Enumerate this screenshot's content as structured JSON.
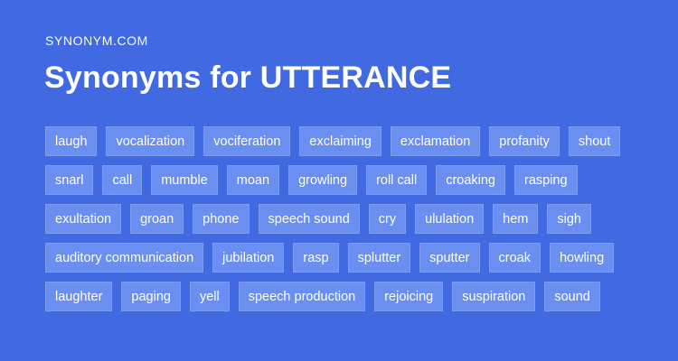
{
  "site": {
    "name": "SYNONYM.COM"
  },
  "title": "Synonyms for UTTERANCE",
  "rows": [
    [
      "laugh",
      "vocalization",
      "vociferation",
      "exclaiming",
      "exclamation",
      "profanity",
      "shout"
    ],
    [
      "snarl",
      "call",
      "mumble",
      "moan",
      "growling",
      "roll call",
      "croaking",
      "rasping"
    ],
    [
      "exultation",
      "groan",
      "phone",
      "speech sound",
      "cry",
      "ululation",
      "hem",
      "sigh"
    ],
    [
      "auditory communication",
      "jubilation",
      "rasp",
      "splutter",
      "sputter",
      "croak",
      "howling"
    ],
    [
      "laughter",
      "paging",
      "yell",
      "speech production",
      "rejoicing",
      "suspiration",
      "sound"
    ]
  ],
  "colors": {
    "background": "#4169e1",
    "tag_background": "#6b8ff0",
    "text": "#ffffff"
  }
}
